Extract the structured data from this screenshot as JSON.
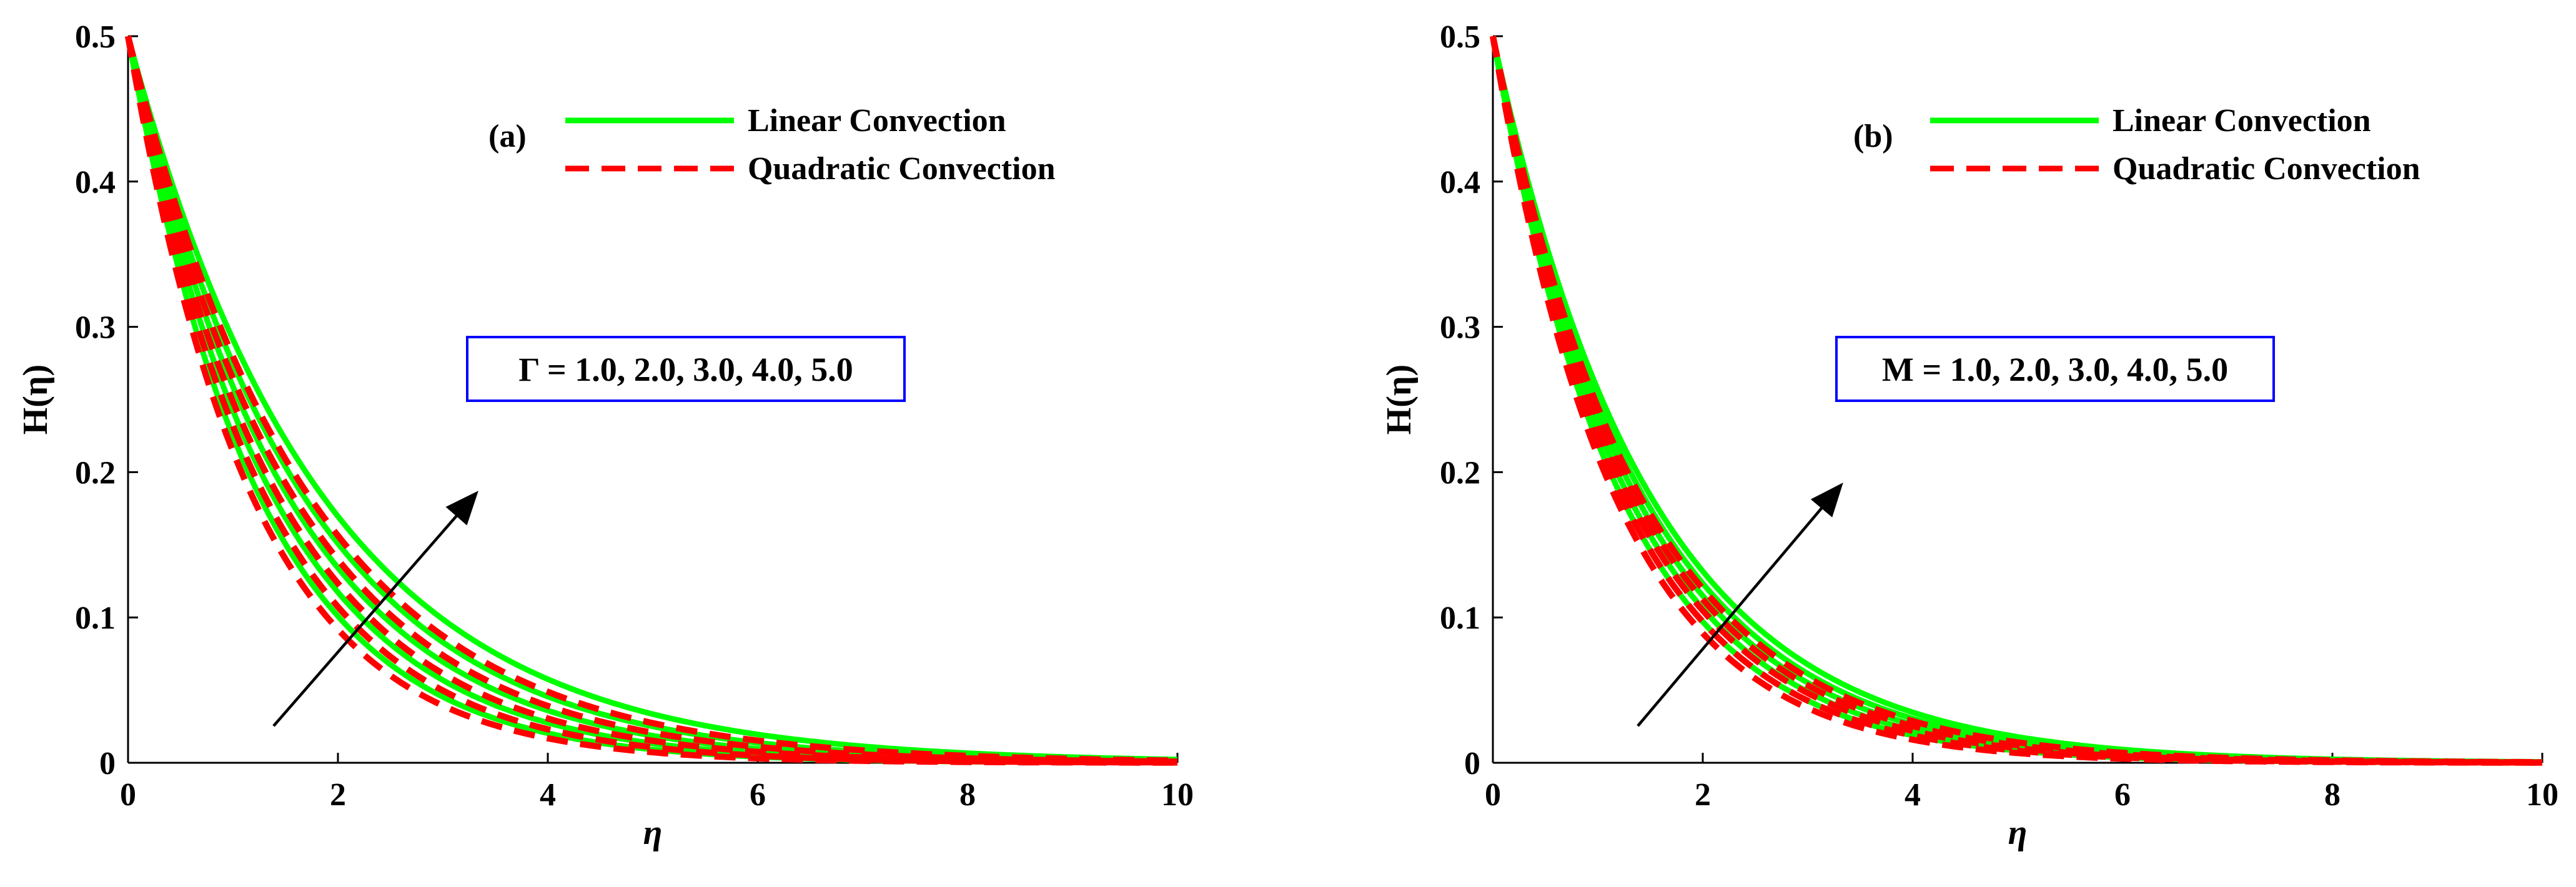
{
  "chart_data": [
    {
      "type": "line",
      "panel_label": "(a)",
      "xlabel": "η",
      "ylabel": "H(η)",
      "xlim": [
        0,
        10
      ],
      "ylim": [
        0,
        0.5
      ],
      "xticks": [
        "0",
        "2",
        "4",
        "6",
        "8",
        "10"
      ],
      "yticks": [
        "0",
        "0.1",
        "0.2",
        "0.3",
        "0.4",
        "0.5"
      ],
      "legend_location": "top-right",
      "legend": [
        {
          "label": "Linear Convection",
          "color": "#00ff00",
          "style": "solid"
        },
        {
          "label": "Quadratic Convection",
          "color": "#ff0000",
          "style": "dashed"
        }
      ],
      "parameter_box": {
        "text": "Γ = 1.0, 2.0, 3.0, 4.0, 5.0",
        "border_color": "#0000ff"
      },
      "trend": "increasing",
      "curve_model": "H(η) = 0.5·exp(−η/L)",
      "series": [
        {
          "name": "Linear Convection",
          "param": "Γ = 1.0",
          "decay_length": 1.25
        },
        {
          "name": "Linear Convection",
          "param": "Γ = 2.0",
          "decay_length": 1.38
        },
        {
          "name": "Linear Convection",
          "param": "Γ = 3.0",
          "decay_length": 1.52
        },
        {
          "name": "Linear Convection",
          "param": "Γ = 4.0",
          "decay_length": 1.67
        },
        {
          "name": "Linear Convection",
          "param": "Γ = 5.0",
          "decay_length": 1.85
        },
        {
          "name": "Quadratic Convection",
          "param": "Γ = 1.0",
          "decay_length": 1.18
        },
        {
          "name": "Quadratic Convection",
          "param": "Γ = 2.0",
          "decay_length": 1.3
        },
        {
          "name": "Quadratic Convection",
          "param": "Γ = 3.0",
          "decay_length": 1.43
        },
        {
          "name": "Quadratic Convection",
          "param": "Γ = 4.0",
          "decay_length": 1.57
        },
        {
          "name": "Quadratic Convection",
          "param": "Γ = 5.0",
          "decay_length": 1.72
        }
      ]
    },
    {
      "type": "line",
      "panel_label": "(b)",
      "xlabel": "η",
      "ylabel": "H(η)",
      "xlim": [
        0,
        10
      ],
      "ylim": [
        0,
        0.5
      ],
      "xticks": [
        "0",
        "2",
        "4",
        "6",
        "8",
        "10"
      ],
      "yticks": [
        "0",
        "0.1",
        "0.2",
        "0.3",
        "0.4",
        "0.5"
      ],
      "legend_location": "top-right",
      "legend": [
        {
          "label": "Linear Convection",
          "color": "#00ff00",
          "style": "solid"
        },
        {
          "label": "Quadratic Convection",
          "color": "#ff0000",
          "style": "dashed"
        }
      ],
      "parameter_box": {
        "text": "M = 1.0, 2.0, 3.0, 4.0, 5.0",
        "border_color": "#0000ff"
      },
      "trend": "increasing",
      "curve_model": "H(η) = 0.5·exp(−η/L)",
      "series": [
        {
          "name": "Linear Convection",
          "param": "M = 1.0",
          "decay_length": 1.22
        },
        {
          "name": "Linear Convection",
          "param": "M = 2.0",
          "decay_length": 1.29
        },
        {
          "name": "Linear Convection",
          "param": "M = 3.0",
          "decay_length": 1.36
        },
        {
          "name": "Linear Convection",
          "param": "M = 4.0",
          "decay_length": 1.43
        },
        {
          "name": "Linear Convection",
          "param": "M = 5.0",
          "decay_length": 1.5
        },
        {
          "name": "Quadratic Convection",
          "param": "M = 1.0",
          "decay_length": 1.16
        },
        {
          "name": "Quadratic Convection",
          "param": "M = 2.0",
          "decay_length": 1.22
        },
        {
          "name": "Quadratic Convection",
          "param": "M = 3.0",
          "decay_length": 1.28
        },
        {
          "name": "Quadratic Convection",
          "param": "M = 4.0",
          "decay_length": 1.34
        },
        {
          "name": "Quadratic Convection",
          "param": "M = 5.0",
          "decay_length": 1.4
        }
      ]
    }
  ]
}
